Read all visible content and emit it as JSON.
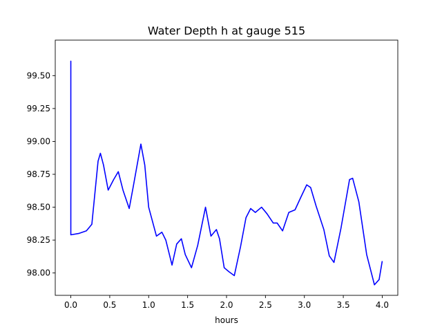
{
  "chart_data": {
    "type": "line",
    "title": "Water Depth h at gauge 515",
    "xlabel": "hours",
    "ylabel": "",
    "xlim": [
      -0.2,
      4.2
    ],
    "ylim": [
      97.83,
      99.77
    ],
    "xticks": [
      0.0,
      0.5,
      1.0,
      1.5,
      2.0,
      2.5,
      3.0,
      3.5,
      4.0
    ],
    "xtick_labels": [
      "0.0",
      "0.5",
      "1.0",
      "1.5",
      "2.0",
      "2.5",
      "3.0",
      "3.5",
      "4.0"
    ],
    "yticks": [
      98.0,
      98.25,
      98.5,
      98.75,
      99.0,
      99.25,
      99.5
    ],
    "ytick_labels": [
      "98.00",
      "98.25",
      "98.50",
      "98.75",
      "99.00",
      "99.25",
      "99.50"
    ],
    "grid": false,
    "series": [
      {
        "color": "#0000ff",
        "x": [
          0.0,
          0.0,
          0.0,
          0.1,
          0.2,
          0.27,
          0.3,
          0.35,
          0.38,
          0.42,
          0.48,
          0.55,
          0.61,
          0.67,
          0.75,
          0.8,
          0.9,
          0.95,
          1.0,
          1.1,
          1.17,
          1.22,
          1.3,
          1.36,
          1.42,
          1.47,
          1.55,
          1.63,
          1.73,
          1.8,
          1.87,
          1.91,
          1.97,
          2.03,
          2.1,
          2.18,
          2.25,
          2.31,
          2.37,
          2.45,
          2.52,
          2.6,
          2.65,
          2.72,
          2.8,
          2.88,
          2.95,
          3.03,
          3.08,
          3.15,
          3.25,
          3.32,
          3.38,
          3.47,
          3.58,
          3.62,
          3.7,
          3.8,
          3.9,
          3.96,
          4.0
        ],
        "y": [
          98.29,
          99.61,
          98.29,
          98.3,
          98.32,
          98.37,
          98.55,
          98.85,
          98.91,
          98.82,
          98.63,
          98.71,
          98.77,
          98.63,
          98.49,
          98.65,
          98.98,
          98.82,
          98.5,
          98.28,
          98.31,
          98.25,
          98.06,
          98.22,
          98.26,
          98.14,
          98.04,
          98.21,
          98.5,
          98.28,
          98.33,
          98.26,
          98.04,
          98.01,
          97.98,
          98.2,
          98.42,
          98.49,
          98.46,
          98.5,
          98.45,
          98.38,
          98.38,
          98.32,
          98.46,
          98.48,
          98.57,
          98.67,
          98.65,
          98.51,
          98.33,
          98.13,
          98.08,
          98.34,
          98.71,
          98.72,
          98.54,
          98.14,
          97.91,
          97.95,
          98.09
        ]
      }
    ]
  }
}
